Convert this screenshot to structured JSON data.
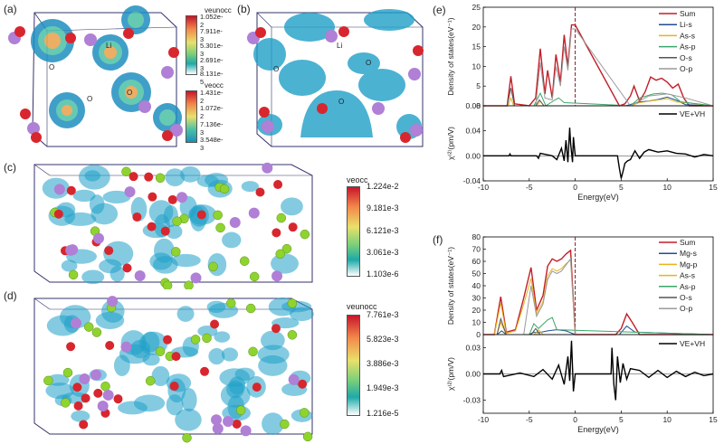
{
  "panels": {
    "a": {
      "label": "(a)",
      "atom_labels": [
        "Li",
        "O",
        "O",
        "O"
      ]
    },
    "b": {
      "label": "(b)",
      "atom_labels": [
        "O",
        "Li",
        "O",
        "O"
      ]
    },
    "c": {
      "label": "(c)"
    },
    "d": {
      "label": "(d)"
    },
    "e": {
      "label": "(e)"
    },
    "f": {
      "label": "(f)"
    }
  },
  "colorbars": {
    "a_top": {
      "title": "veunocc",
      "ticks": [
        "1.052e-2",
        "7.911e-3",
        "5.301e-3",
        "2.691e-3",
        "8.131e-5"
      ]
    },
    "a_bottom": {
      "title": "veocc",
      "ticks": [
        "1.431e-2",
        "1.072e-2",
        "7.136e-3",
        "3.548e-3"
      ]
    },
    "c": {
      "title": "veocc",
      "ticks": [
        "1.224e-2",
        "9.181e-3",
        "6.121e-3",
        "3.061e-3",
        "1.103e-6"
      ]
    },
    "d": {
      "title": "veunocc",
      "ticks": [
        "7.761e-3",
        "5.823e-3",
        "3.886e-3",
        "1.949e-3",
        "1.216e-5"
      ]
    }
  },
  "colors": {
    "sum": "#c21f2a",
    "li_s": "#1f4e8c",
    "as_s": "#e5b51c",
    "as_p": "#3aa66a",
    "o_s": "#555555",
    "o_p": "#9a9a9a",
    "mg_s": "#1f4e8c",
    "mg_p": "#e5b51c",
    "vevh": "#000000",
    "fermi": "#7a1f2a",
    "atom_purple": "#b07fd6",
    "atom_red": "#d8262e",
    "atom_green": "#8fd32f",
    "iso_blue": "#1fa0c8"
  },
  "chart_data": [
    {
      "id": "e-dos",
      "type": "line",
      "ylabel": "Density of states(eV⁻¹)",
      "xlim": [
        -10,
        15
      ],
      "ylim": [
        0,
        25
      ],
      "yticks": [
        "0",
        "5",
        "10",
        "15",
        "20",
        "25"
      ],
      "legend_position": "top-right",
      "fermi_level": 0,
      "series": [
        {
          "name": "Sum",
          "color_key": "sum",
          "x": [
            -10,
            -7.4,
            -7.0,
            -6.6,
            -5,
            -4.3,
            -3.8,
            -3.3,
            -3.0,
            -2.5,
            -2.1,
            -1.6,
            -1.2,
            -0.8,
            -0.4,
            0,
            4.8,
            5.4,
            6.0,
            6.4,
            7.0,
            7.6,
            8.2,
            8.8,
            9.4,
            10.0,
            10.6,
            11.2,
            11.8,
            12.4,
            15
          ],
          "y": [
            0,
            0,
            7.5,
            0.5,
            0,
            2.0,
            14.5,
            3.0,
            9.0,
            2.0,
            13.0,
            6.0,
            18.0,
            10.0,
            20.5,
            20.5,
            0,
            0.5,
            2.5,
            5.0,
            1.2,
            3.5,
            7.3,
            6.5,
            7.0,
            6.0,
            4.5,
            5.5,
            2.0,
            0,
            0
          ]
        },
        {
          "name": "Li-s",
          "color_key": "li_s",
          "x": [
            -10,
            5.5,
            7,
            8,
            9,
            10,
            11,
            12,
            15
          ],
          "y": [
            0,
            0,
            1.0,
            1.2,
            1.6,
            2.2,
            1.4,
            0.3,
            0
          ]
        },
        {
          "name": "As-s",
          "color_key": "as_s",
          "x": [
            -10,
            -7.3,
            -7.0,
            -6.7,
            -4.2,
            -3.8,
            -3.4,
            6,
            7,
            9,
            10,
            11,
            15
          ],
          "y": [
            0,
            0,
            2.0,
            0,
            0,
            1.2,
            0,
            0,
            0.8,
            1.5,
            1.8,
            1.0,
            0
          ]
        },
        {
          "name": "As-p",
          "color_key": "as_p",
          "x": [
            -10,
            -4.5,
            -3.8,
            -3.2,
            -2.2,
            -1.8,
            -1.2,
            6,
            7,
            8.5,
            9.5,
            10.5,
            11.5,
            15
          ],
          "y": [
            0,
            0,
            3.2,
            0,
            1.5,
            2.0,
            0.8,
            0,
            2.0,
            3.0,
            3.2,
            2.8,
            1.0,
            0
          ]
        },
        {
          "name": "O-s",
          "color_key": "o_s",
          "x": [
            -10,
            -7.4,
            -7.0,
            -6.6,
            -4.3,
            -3.9,
            -3.4,
            15
          ],
          "y": [
            0,
            0,
            4.5,
            0,
            0,
            1.5,
            0,
            0
          ]
        },
        {
          "name": "O-p",
          "color_key": "o_p",
          "x": [
            -10,
            -4.3,
            -3.8,
            -3.3,
            -2.5,
            -2.1,
            -1.6,
            -1.2,
            -0.8,
            -0.4,
            0,
            6,
            8,
            10,
            12,
            15
          ],
          "y": [
            0,
            0,
            11.0,
            2.0,
            1.5,
            10.0,
            5.0,
            15.0,
            9.0,
            19.5,
            19.5,
            0,
            2.5,
            3.0,
            2.0,
            0
          ]
        }
      ]
    },
    {
      "id": "e-chi",
      "type": "line",
      "xlabel": "Energy(eV)",
      "ylabel": "χ⁽²⁾(pm/V)",
      "xlim": [
        -10,
        15
      ],
      "ylim": [
        -0.04,
        0.08
      ],
      "xticks": [
        "-10",
        "-5",
        "0",
        "5",
        "10",
        "15"
      ],
      "yticks": [
        "-0.04",
        "0.00",
        "0.04",
        "0.08"
      ],
      "legend_position": "top-right",
      "series": [
        {
          "name": "VE+VH",
          "color_key": "vevh",
          "x": [
            -10,
            -7.2,
            -7.1,
            -7.0,
            -4.2,
            -4.0,
            -3.8,
            -2.5,
            -2.0,
            -1.5,
            -1.2,
            -1.0,
            -0.8,
            -0.6,
            -0.5,
            -0.3,
            -0.2,
            0,
            4.6,
            4.8,
            5.0,
            5.2,
            5.4,
            5.7,
            6.0,
            6.5,
            7.0,
            7.5,
            8.0,
            9.0,
            10.0,
            11.0,
            12.0,
            13.0,
            14.0,
            15.0
          ],
          "y": [
            0,
            0,
            0.003,
            0,
            0,
            -0.004,
            0.004,
            0,
            -0.006,
            0.012,
            -0.008,
            0.025,
            -0.01,
            0.045,
            0.02,
            -0.01,
            0.03,
            0,
            0,
            -0.02,
            -0.036,
            -0.025,
            -0.012,
            -0.008,
            -0.006,
            0.008,
            -0.004,
            0.006,
            0.01,
            0.006,
            0.008,
            0.004,
            0.003,
            -0.002,
            0.002,
            0
          ]
        }
      ]
    },
    {
      "id": "f-dos",
      "type": "line",
      "ylabel": "Density of states(eV⁻¹)",
      "xlim": [
        -10,
        15
      ],
      "ylim": [
        0,
        80
      ],
      "yticks": [
        "0",
        "10",
        "20",
        "30",
        "40",
        "50",
        "60",
        "70",
        "80"
      ],
      "legend_position": "top-right",
      "fermi_level": 0,
      "series": [
        {
          "name": "Sum",
          "color_key": "sum",
          "x": [
            -10,
            -8.8,
            -8.1,
            -7.5,
            -6.5,
            -5.6,
            -4.8,
            -4.2,
            -3.5,
            -3.0,
            -2.5,
            -2.0,
            -1.5,
            -1.0,
            -0.5,
            0,
            4.4,
            5.0,
            5.6,
            6.2,
            7.0,
            15
          ],
          "y": [
            0,
            0,
            31,
            2,
            4,
            30,
            55,
            20,
            32,
            56,
            62,
            60,
            62,
            66,
            69,
            0,
            0,
            5,
            17,
            10,
            0,
            0
          ]
        },
        {
          "name": "Mg-s",
          "color_key": "mg_s",
          "x": [
            -10,
            -8.5,
            -8.0,
            -7.5,
            -5,
            -4.5,
            -4,
            -3,
            -2,
            -1,
            0,
            4.8,
            5.6,
            6.5,
            15
          ],
          "y": [
            0,
            0,
            3,
            0,
            0,
            2,
            1.5,
            3,
            4,
            3,
            0,
            0,
            7,
            2,
            0
          ]
        },
        {
          "name": "Mg-p",
          "color_key": "mg_p",
          "x": [
            -10,
            -8.8,
            -8.1,
            -7.5,
            -6.5,
            -5.6,
            -4.8,
            -4.2,
            -3.5,
            -3.0,
            -2.5,
            -2.0,
            -1.5,
            -1.0,
            -0.5,
            0,
            15
          ],
          "y": [
            0,
            0,
            26,
            1,
            3,
            25,
            46,
            17,
            27,
            48,
            54,
            52,
            54,
            58,
            61,
            0,
            0
          ]
        },
        {
          "name": "As-s",
          "color_key": "as_s",
          "x": [
            -10,
            -8.5,
            -8.1,
            -7.5,
            -4.5,
            -4.0,
            -3.5,
            15
          ],
          "y": [
            0,
            0,
            10,
            0,
            0,
            4,
            0,
            0
          ]
        },
        {
          "name": "As-p",
          "color_key": "as_p",
          "x": [
            -10,
            -5,
            -4.5,
            -4,
            -3,
            -2.5,
            -2,
            15
          ],
          "y": [
            0,
            0,
            9,
            5,
            12,
            14,
            4,
            0
          ]
        },
        {
          "name": "O-s",
          "color_key": "o_s",
          "x": [
            -10,
            -8.5,
            -8.1,
            -7.5,
            -4.8,
            -4.3,
            -3.8,
            15
          ],
          "y": [
            0,
            0,
            13,
            0,
            0,
            5,
            0,
            0
          ]
        },
        {
          "name": "O-p",
          "color_key": "o_p",
          "x": [
            -10,
            -5.6,
            -4.8,
            -4.2,
            -3.5,
            -3.0,
            -2.5,
            -2.0,
            -1.5,
            -1.0,
            -0.5,
            0,
            15
          ],
          "y": [
            0,
            0,
            40,
            15,
            25,
            45,
            52,
            50,
            52,
            57,
            62,
            0,
            0
          ]
        }
      ]
    },
    {
      "id": "f-chi",
      "type": "line",
      "xlabel": "Energy(eV)",
      "ylabel": "χ⁽²⁾(pm/V)",
      "xlim": [
        -10,
        15
      ],
      "ylim": [
        -0.045,
        0.045
      ],
      "xticks": [
        "-10",
        "-5",
        "0",
        "5",
        "10",
        "15"
      ],
      "yticks": [
        "-0.03",
        "0.00",
        "0.03"
      ],
      "legend_position": "top-right",
      "series": [
        {
          "name": "VE+VH",
          "color_key": "vevh",
          "x": [
            -10,
            -8.2,
            -8.0,
            -7.8,
            -6,
            -4.5,
            -3.5,
            -2.5,
            -1.8,
            -1.2,
            -0.8,
            -0.6,
            -0.4,
            -0.2,
            0,
            3.9,
            4.0,
            4.2,
            4.4,
            4.6,
            4.9,
            5.2,
            5.6,
            6.0,
            7.0,
            8.0,
            9.0,
            10.0,
            11.0,
            12.0,
            13.0,
            14.0,
            15.0
          ],
          "y": [
            0,
            0,
            0.004,
            -0.003,
            0.001,
            -0.003,
            0.005,
            -0.006,
            0.01,
            -0.012,
            0.02,
            -0.008,
            0.038,
            -0.02,
            0,
            0,
            0.03,
            -0.012,
            -0.03,
            0.02,
            -0.01,
            0.012,
            -0.006,
            0.006,
            0.004,
            -0.004,
            0.004,
            -0.004,
            0.003,
            -0.003,
            0.002,
            -0.002,
            0
          ]
        }
      ]
    }
  ]
}
